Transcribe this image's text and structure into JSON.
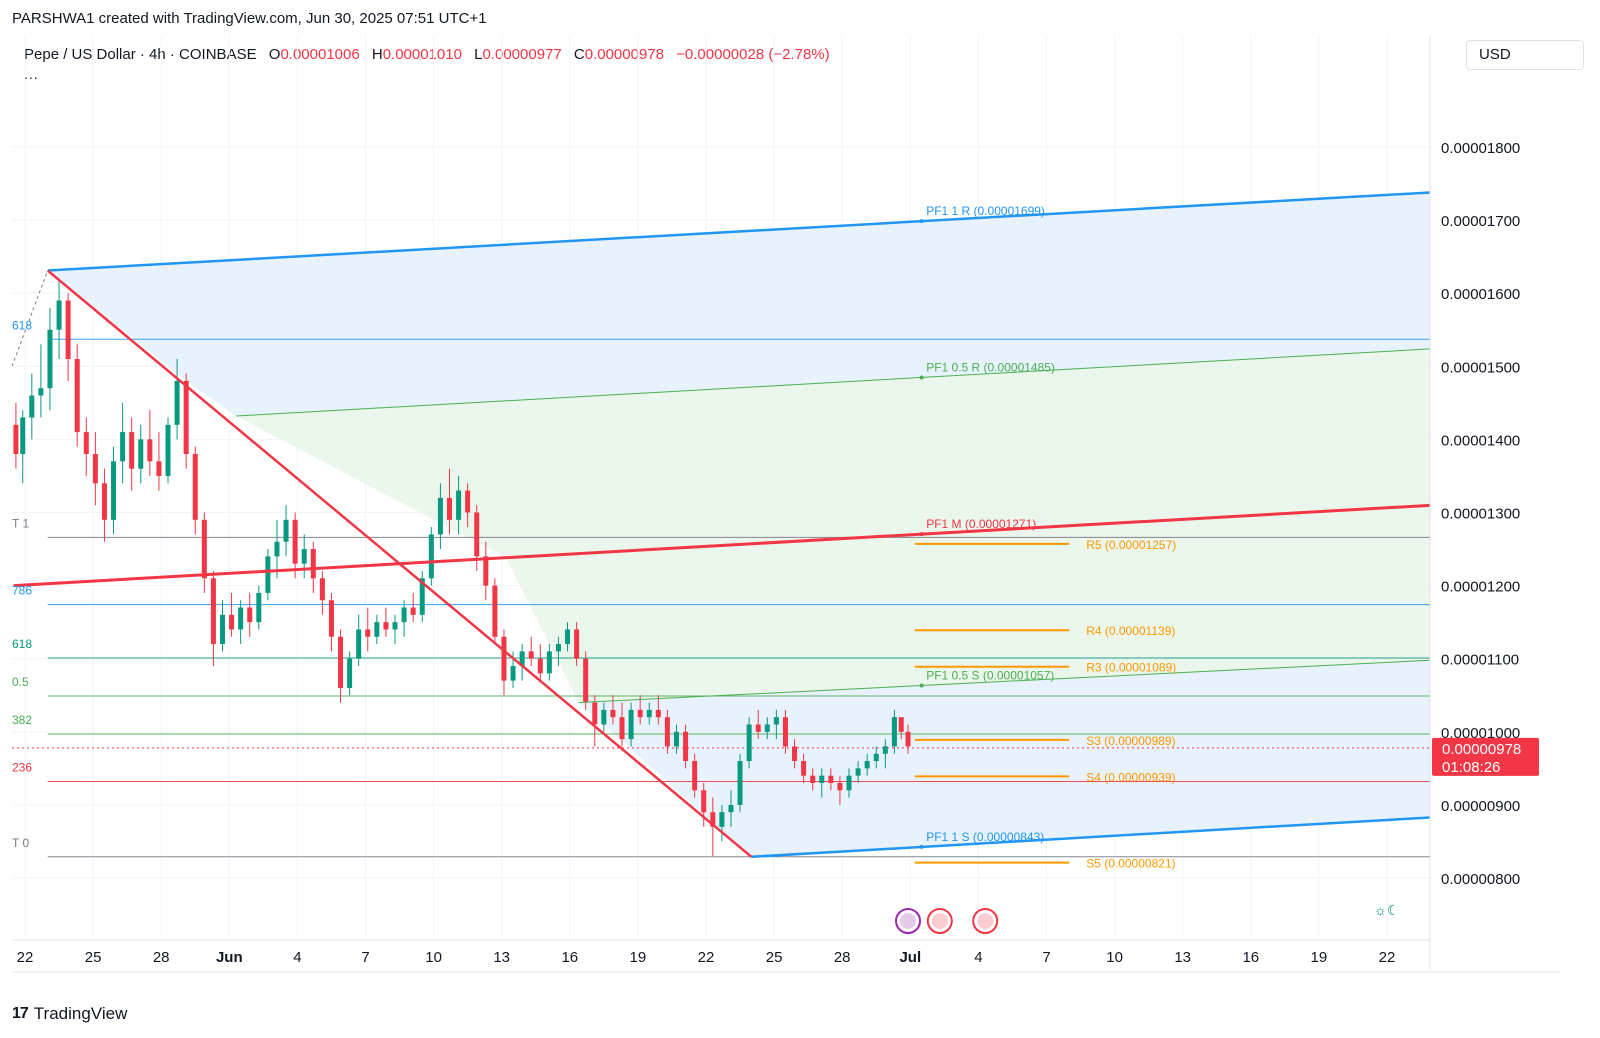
{
  "header": {
    "attribution": "PARSHWA1 created with TradingView.com, Jun 30, 2025 07:51 UTC+1"
  },
  "legend": {
    "symbol": "Pepe / US Dollar · 4h · COINBASE",
    "o_label": "O",
    "o_value": "0.00001006",
    "h_label": "H",
    "h_value": "0.00001010",
    "l_label": "L",
    "l_value": "0.00000977",
    "c_label": "C",
    "c_value": "0.00000978",
    "change": "−0.00000028 (−2.78%)",
    "more": "..."
  },
  "currency": "USD",
  "footer": {
    "logo_text": "TradingView"
  },
  "price_tag": {
    "price": "0.00000978",
    "countdown": "01:08:26"
  },
  "colors": {
    "up": "#089981",
    "down": "#f23645",
    "blue": "#2196f3",
    "green": "#4caf50",
    "red": "#f23645",
    "orange": "#ff9800",
    "fill_blue": "#e3f0fc",
    "fill_green": "#e8f5e9"
  },
  "chart_data": {
    "type": "candlestick",
    "symbol": "PEPE/USD",
    "timeframe": "4h",
    "y_axis": {
      "min": 7.5e-06,
      "max": 1.93e-05,
      "ticks": [
        "0.00001800",
        "0.00001700",
        "0.00001600",
        "0.00001500",
        "0.00001400",
        "0.00001300",
        "0.00001200",
        "0.00001100",
        "0.00001000",
        "0.00000900",
        "0.00000800"
      ],
      "tick_values": [
        1.8e-05,
        1.7e-05,
        1.6e-05,
        1.5e-05,
        1.4e-05,
        1.3e-05,
        1.2e-05,
        1.1e-05,
        1e-05,
        9e-06,
        8e-06
      ]
    },
    "x_axis": {
      "labels": [
        "22",
        "25",
        "28",
        "Jun",
        "4",
        "7",
        "10",
        "13",
        "16",
        "19",
        "22",
        "25",
        "28",
        "Jul",
        "4",
        "7",
        "10",
        "13",
        "16",
        "19",
        "22"
      ],
      "day_index": [
        0,
        3,
        6,
        9,
        12,
        15,
        18,
        21,
        24,
        27,
        30,
        33,
        36,
        39,
        42,
        45,
        48,
        51,
        54,
        57,
        60
      ],
      "bold": [
        "Jun",
        "Jul"
      ]
    },
    "candles": [
      {
        "day": -0.4,
        "o": 1.42e-05,
        "h": 1.45e-05,
        "l": 1.36e-05,
        "c": 1.38e-05
      },
      {
        "day": -0.1,
        "o": 1.38e-05,
        "h": 1.44e-05,
        "l": 1.34e-05,
        "c": 1.43e-05
      },
      {
        "day": 0.3,
        "o": 1.43e-05,
        "h": 1.49e-05,
        "l": 1.4e-05,
        "c": 1.46e-05
      },
      {
        "day": 0.7,
        "o": 1.46e-05,
        "h": 1.53e-05,
        "l": 1.43e-05,
        "c": 1.47e-05
      },
      {
        "day": 1.1,
        "o": 1.47e-05,
        "h": 1.58e-05,
        "l": 1.44e-05,
        "c": 1.55e-05
      },
      {
        "day": 1.5,
        "o": 1.55e-05,
        "h": 1.62e-05,
        "l": 1.51e-05,
        "c": 1.59e-05
      },
      {
        "day": 1.9,
        "o": 1.59e-05,
        "h": 1.6e-05,
        "l": 1.48e-05,
        "c": 1.51e-05
      },
      {
        "day": 2.3,
        "o": 1.51e-05,
        "h": 1.53e-05,
        "l": 1.39e-05,
        "c": 1.41e-05
      },
      {
        "day": 2.7,
        "o": 1.41e-05,
        "h": 1.43e-05,
        "l": 1.35e-05,
        "c": 1.38e-05
      },
      {
        "day": 3.1,
        "o": 1.38e-05,
        "h": 1.41e-05,
        "l": 1.31e-05,
        "c": 1.34e-05
      },
      {
        "day": 3.5,
        "o": 1.34e-05,
        "h": 1.36e-05,
        "l": 1.26e-05,
        "c": 1.29e-05
      },
      {
        "day": 3.9,
        "o": 1.29e-05,
        "h": 1.39e-05,
        "l": 1.27e-05,
        "c": 1.37e-05
      },
      {
        "day": 4.3,
        "o": 1.37e-05,
        "h": 1.45e-05,
        "l": 1.34e-05,
        "c": 1.41e-05
      },
      {
        "day": 4.7,
        "o": 1.41e-05,
        "h": 1.43e-05,
        "l": 1.33e-05,
        "c": 1.36e-05
      },
      {
        "day": 5.1,
        "o": 1.36e-05,
        "h": 1.42e-05,
        "l": 1.34e-05,
        "c": 1.4e-05
      },
      {
        "day": 5.5,
        "o": 1.4e-05,
        "h": 1.44e-05,
        "l": 1.35e-05,
        "c": 1.37e-05
      },
      {
        "day": 5.9,
        "o": 1.37e-05,
        "h": 1.41e-05,
        "l": 1.33e-05,
        "c": 1.35e-05
      },
      {
        "day": 6.3,
        "o": 1.35e-05,
        "h": 1.43e-05,
        "l": 1.34e-05,
        "c": 1.42e-05
      },
      {
        "day": 6.7,
        "o": 1.42e-05,
        "h": 1.51e-05,
        "l": 1.4e-05,
        "c": 1.48e-05
      },
      {
        "day": 7.1,
        "o": 1.48e-05,
        "h": 1.49e-05,
        "l": 1.36e-05,
        "c": 1.38e-05
      },
      {
        "day": 7.5,
        "o": 1.38e-05,
        "h": 1.39e-05,
        "l": 1.27e-05,
        "c": 1.29e-05
      },
      {
        "day": 7.9,
        "o": 1.29e-05,
        "h": 1.3e-05,
        "l": 1.19e-05,
        "c": 1.21e-05
      },
      {
        "day": 8.3,
        "o": 1.21e-05,
        "h": 1.22e-05,
        "l": 1.09e-05,
        "c": 1.12e-05
      },
      {
        "day": 8.7,
        "o": 1.12e-05,
        "h": 1.18e-05,
        "l": 1.11e-05,
        "c": 1.16e-05
      },
      {
        "day": 9.1,
        "o": 1.16e-05,
        "h": 1.19e-05,
        "l": 1.13e-05,
        "c": 1.14e-05
      },
      {
        "day": 9.5,
        "o": 1.14e-05,
        "h": 1.18e-05,
        "l": 1.12e-05,
        "c": 1.17e-05
      },
      {
        "day": 9.9,
        "o": 1.17e-05,
        "h": 1.19e-05,
        "l": 1.13e-05,
        "c": 1.15e-05
      },
      {
        "day": 10.3,
        "o": 1.15e-05,
        "h": 1.2e-05,
        "l": 1.14e-05,
        "c": 1.19e-05
      },
      {
        "day": 10.7,
        "o": 1.19e-05,
        "h": 1.25e-05,
        "l": 1.18e-05,
        "c": 1.24e-05
      },
      {
        "day": 11.1,
        "o": 1.24e-05,
        "h": 1.29e-05,
        "l": 1.21e-05,
        "c": 1.26e-05
      },
      {
        "day": 11.5,
        "o": 1.26e-05,
        "h": 1.31e-05,
        "l": 1.24e-05,
        "c": 1.29e-05
      },
      {
        "day": 11.9,
        "o": 1.29e-05,
        "h": 1.3e-05,
        "l": 1.21e-05,
        "c": 1.23e-05
      },
      {
        "day": 12.3,
        "o": 1.23e-05,
        "h": 1.27e-05,
        "l": 1.21e-05,
        "c": 1.25e-05
      },
      {
        "day": 12.7,
        "o": 1.25e-05,
        "h": 1.26e-05,
        "l": 1.19e-05,
        "c": 1.21e-05
      },
      {
        "day": 13.1,
        "o": 1.21e-05,
        "h": 1.22e-05,
        "l": 1.16e-05,
        "c": 1.18e-05
      },
      {
        "day": 13.5,
        "o": 1.18e-05,
        "h": 1.19e-05,
        "l": 1.11e-05,
        "c": 1.13e-05
      },
      {
        "day": 13.9,
        "o": 1.13e-05,
        "h": 1.14e-05,
        "l": 1.04e-05,
        "c": 1.06e-05
      },
      {
        "day": 14.3,
        "o": 1.06e-05,
        "h": 1.11e-05,
        "l": 1.05e-05,
        "c": 1.1e-05
      },
      {
        "day": 14.7,
        "o": 1.1e-05,
        "h": 1.16e-05,
        "l": 1.09e-05,
        "c": 1.14e-05
      },
      {
        "day": 15.1,
        "o": 1.14e-05,
        "h": 1.17e-05,
        "l": 1.11e-05,
        "c": 1.13e-05
      },
      {
        "day": 15.5,
        "o": 1.13e-05,
        "h": 1.16e-05,
        "l": 1.12e-05,
        "c": 1.15e-05
      },
      {
        "day": 15.9,
        "o": 1.15e-05,
        "h": 1.17e-05,
        "l": 1.13e-05,
        "c": 1.14e-05
      },
      {
        "day": 16.3,
        "o": 1.14e-05,
        "h": 1.16e-05,
        "l": 1.12e-05,
        "c": 1.15e-05
      },
      {
        "day": 16.7,
        "o": 1.15e-05,
        "h": 1.18e-05,
        "l": 1.13e-05,
        "c": 1.17e-05
      },
      {
        "day": 17.1,
        "o": 1.17e-05,
        "h": 1.19e-05,
        "l": 1.15e-05,
        "c": 1.16e-05
      },
      {
        "day": 17.5,
        "o": 1.16e-05,
        "h": 1.22e-05,
        "l": 1.15e-05,
        "c": 1.21e-05
      },
      {
        "day": 17.9,
        "o": 1.21e-05,
        "h": 1.28e-05,
        "l": 1.2e-05,
        "c": 1.27e-05
      },
      {
        "day": 18.3,
        "o": 1.27e-05,
        "h": 1.34e-05,
        "l": 1.25e-05,
        "c": 1.32e-05
      },
      {
        "day": 18.7,
        "o": 1.32e-05,
        "h": 1.36e-05,
        "l": 1.27e-05,
        "c": 1.29e-05
      },
      {
        "day": 19.1,
        "o": 1.29e-05,
        "h": 1.35e-05,
        "l": 1.27e-05,
        "c": 1.33e-05
      },
      {
        "day": 19.5,
        "o": 1.33e-05,
        "h": 1.34e-05,
        "l": 1.28e-05,
        "c": 1.3e-05
      },
      {
        "day": 19.9,
        "o": 1.3e-05,
        "h": 1.31e-05,
        "l": 1.22e-05,
        "c": 1.24e-05
      },
      {
        "day": 20.3,
        "o": 1.24e-05,
        "h": 1.26e-05,
        "l": 1.18e-05,
        "c": 1.2e-05
      },
      {
        "day": 20.7,
        "o": 1.2e-05,
        "h": 1.21e-05,
        "l": 1.12e-05,
        "c": 1.13e-05
      },
      {
        "day": 21.1,
        "o": 1.13e-05,
        "h": 1.14e-05,
        "l": 1.05e-05,
        "c": 1.07e-05
      },
      {
        "day": 21.5,
        "o": 1.07e-05,
        "h": 1.11e-05,
        "l": 1.06e-05,
        "c": 1.09e-05
      },
      {
        "day": 21.9,
        "o": 1.09e-05,
        "h": 1.12e-05,
        "l": 1.07e-05,
        "c": 1.11e-05
      },
      {
        "day": 22.3,
        "o": 1.11e-05,
        "h": 1.13e-05,
        "l": 1.09e-05,
        "c": 1.1e-05
      },
      {
        "day": 22.7,
        "o": 1.1e-05,
        "h": 1.12e-05,
        "l": 1.07e-05,
        "c": 1.08e-05
      },
      {
        "day": 23.1,
        "o": 1.08e-05,
        "h": 1.12e-05,
        "l": 1.07e-05,
        "c": 1.11e-05
      },
      {
        "day": 23.5,
        "o": 1.11e-05,
        "h": 1.13e-05,
        "l": 1.09e-05,
        "c": 1.12e-05
      },
      {
        "day": 23.9,
        "o": 1.12e-05,
        "h": 1.15e-05,
        "l": 1.11e-05,
        "c": 1.14e-05
      },
      {
        "day": 24.3,
        "o": 1.14e-05,
        "h": 1.15e-05,
        "l": 1.09e-05,
        "c": 1.1e-05
      },
      {
        "day": 24.7,
        "o": 1.1e-05,
        "h": 1.11e-05,
        "l": 1.03e-05,
        "c": 1.04e-05
      },
      {
        "day": 25.1,
        "o": 1.04e-05,
        "h": 1.05e-05,
        "l": 9.8e-06,
        "c": 1.01e-05
      },
      {
        "day": 25.5,
        "o": 1.01e-05,
        "h": 1.04e-05,
        "l": 1e-05,
        "c": 1.03e-05
      },
      {
        "day": 25.9,
        "o": 1.03e-05,
        "h": 1.05e-05,
        "l": 1.01e-05,
        "c": 1.02e-05
      },
      {
        "day": 26.3,
        "o": 1.02e-05,
        "h": 1.04e-05,
        "l": 9.8e-06,
        "c": 9.9e-06
      },
      {
        "day": 26.7,
        "o": 9.9e-06,
        "h": 1.04e-05,
        "l": 9.8e-06,
        "c": 1.03e-05
      },
      {
        "day": 27.1,
        "o": 1.03e-05,
        "h": 1.05e-05,
        "l": 1.01e-05,
        "c": 1.02e-05
      },
      {
        "day": 27.5,
        "o": 1.02e-05,
        "h": 1.04e-05,
        "l": 1.01e-05,
        "c": 1.03e-05
      },
      {
        "day": 27.9,
        "o": 1.03e-05,
        "h": 1.05e-05,
        "l": 1.01e-05,
        "c": 1.02e-05
      },
      {
        "day": 28.3,
        "o": 1.02e-05,
        "h": 1.03e-05,
        "l": 9.7e-06,
        "c": 9.8e-06
      },
      {
        "day": 28.7,
        "o": 9.8e-06,
        "h": 1.01e-05,
        "l": 9.7e-06,
        "c": 1e-05
      },
      {
        "day": 29.1,
        "o": 1e-05,
        "h": 1.01e-05,
        "l": 9.5e-06,
        "c": 9.6e-06
      },
      {
        "day": 29.5,
        "o": 9.6e-06,
        "h": 9.7e-06,
        "l": 9.1e-06,
        "c": 9.2e-06
      },
      {
        "day": 29.9,
        "o": 9.2e-06,
        "h": 9.3e-06,
        "l": 8.7e-06,
        "c": 8.9e-06
      },
      {
        "day": 30.3,
        "o": 8.9e-06,
        "h": 9.1e-06,
        "l": 8.3e-06,
        "c": 8.7e-06
      },
      {
        "day": 30.7,
        "o": 8.7e-06,
        "h": 9e-06,
        "l": 8.5e-06,
        "c": 8.9e-06
      },
      {
        "day": 31.1,
        "o": 8.9e-06,
        "h": 9.2e-06,
        "l": 8.7e-06,
        "c": 9e-06
      },
      {
        "day": 31.5,
        "o": 9e-06,
        "h": 9.7e-06,
        "l": 8.9e-06,
        "c": 9.6e-06
      },
      {
        "day": 31.9,
        "o": 9.6e-06,
        "h": 1.02e-05,
        "l": 9.5e-06,
        "c": 1.01e-05
      },
      {
        "day": 32.3,
        "o": 1.01e-05,
        "h": 1.03e-05,
        "l": 9.9e-06,
        "c": 1e-05
      },
      {
        "day": 32.7,
        "o": 1e-05,
        "h": 1.02e-05,
        "l": 9.9e-06,
        "c": 1.01e-05
      },
      {
        "day": 33.1,
        "o": 1.01e-05,
        "h": 1.03e-05,
        "l": 9.9e-06,
        "c": 1.02e-05
      },
      {
        "day": 33.5,
        "o": 1.02e-05,
        "h": 1.03e-05,
        "l": 9.7e-06,
        "c": 9.8e-06
      },
      {
        "day": 33.9,
        "o": 9.8e-06,
        "h": 9.9e-06,
        "l": 9.5e-06,
        "c": 9.6e-06
      },
      {
        "day": 34.3,
        "o": 9.6e-06,
        "h": 9.7e-06,
        "l": 9.3e-06,
        "c": 9.4e-06
      },
      {
        "day": 34.7,
        "o": 9.4e-06,
        "h": 9.5e-06,
        "l": 9.2e-06,
        "c": 9.3e-06
      },
      {
        "day": 35.1,
        "o": 9.3e-06,
        "h": 9.5e-06,
        "l": 9.1e-06,
        "c": 9.4e-06
      },
      {
        "day": 35.5,
        "o": 9.4e-06,
        "h": 9.5e-06,
        "l": 9.2e-06,
        "c": 9.3e-06
      },
      {
        "day": 35.9,
        "o": 9.3e-06,
        "h": 9.4e-06,
        "l": 9e-06,
        "c": 9.2e-06
      },
      {
        "day": 36.3,
        "o": 9.2e-06,
        "h": 9.5e-06,
        "l": 9.1e-06,
        "c": 9.4e-06
      },
      {
        "day": 36.7,
        "o": 9.4e-06,
        "h": 9.6e-06,
        "l": 9.3e-06,
        "c": 9.5e-06
      },
      {
        "day": 37.1,
        "o": 9.5e-06,
        "h": 9.7e-06,
        "l": 9.4e-06,
        "c": 9.6e-06
      },
      {
        "day": 37.5,
        "o": 9.6e-06,
        "h": 9.8e-06,
        "l": 9.5e-06,
        "c": 9.7e-06
      },
      {
        "day": 37.9,
        "o": 9.7e-06,
        "h": 9.9e-06,
        "l": 9.5e-06,
        "c": 9.8e-06
      },
      {
        "day": 38.3,
        "o": 9.8e-06,
        "h": 1.03e-05,
        "l": 9.7e-06,
        "c": 1.02e-05
      },
      {
        "day": 38.6,
        "o": 1.02e-05,
        "h": 1.02e-05,
        "l": 9.9e-06,
        "c": 1e-05
      },
      {
        "day": 38.9,
        "o": 1e-05,
        "h": 1.01e-05,
        "l": 9.7e-06,
        "c": 9.8e-06
      }
    ],
    "annotations": {
      "pitchfork": [
        {
          "label": "PF1 1 R (0.00001699)",
          "color": "#2196f3"
        },
        {
          "label": "PF1 0.5 R (0.00001485)",
          "color": "#4caf50"
        },
        {
          "label": "PF1 M (0.00001271)",
          "color": "#f23645"
        },
        {
          "label": "PF1 0.5 S (0.00001057)",
          "color": "#4caf50"
        },
        {
          "label": "PF1 1 S (0.00000843)",
          "color": "#2196f3"
        }
      ],
      "pivots": [
        {
          "label": "R5 (0.00001257)",
          "value": 1.257e-05
        },
        {
          "label": "R4 (0.00001139)",
          "value": 1.139e-05
        },
        {
          "label": "R3 (0.00001089)",
          "value": 1.089e-05
        },
        {
          "label": "S3 (0.00000989)",
          "value": 9.89e-06
        },
        {
          "label": "S4 (0.00000939)",
          "value": 9.39e-06
        },
        {
          "label": "S5 (0.00000821)",
          "value": 8.21e-06
        }
      ],
      "fib_levels": [
        {
          "label": "618",
          "value": 1.537e-05,
          "color": "#2196f3"
        },
        {
          "label": "T 1",
          "value": 1.266e-05,
          "color": "#787b86"
        },
        {
          "label": "786",
          "value": 1.174e-05,
          "color": "#2196f3"
        },
        {
          "label": "618",
          "value": 1.101e-05,
          "color": "#089981"
        },
        {
          "label": "0.5",
          "value": 1.049e-05,
          "color": "#4caf50"
        },
        {
          "label": "382",
          "value": 9.97e-06,
          "color": "#4caf50"
        },
        {
          "label": "236",
          "value": 9.32e-06,
          "color": "#f23645"
        },
        {
          "label": "T 0",
          "value": 8.29e-06,
          "color": "#787b86"
        }
      ]
    },
    "last_price": 9.78e-06
  }
}
